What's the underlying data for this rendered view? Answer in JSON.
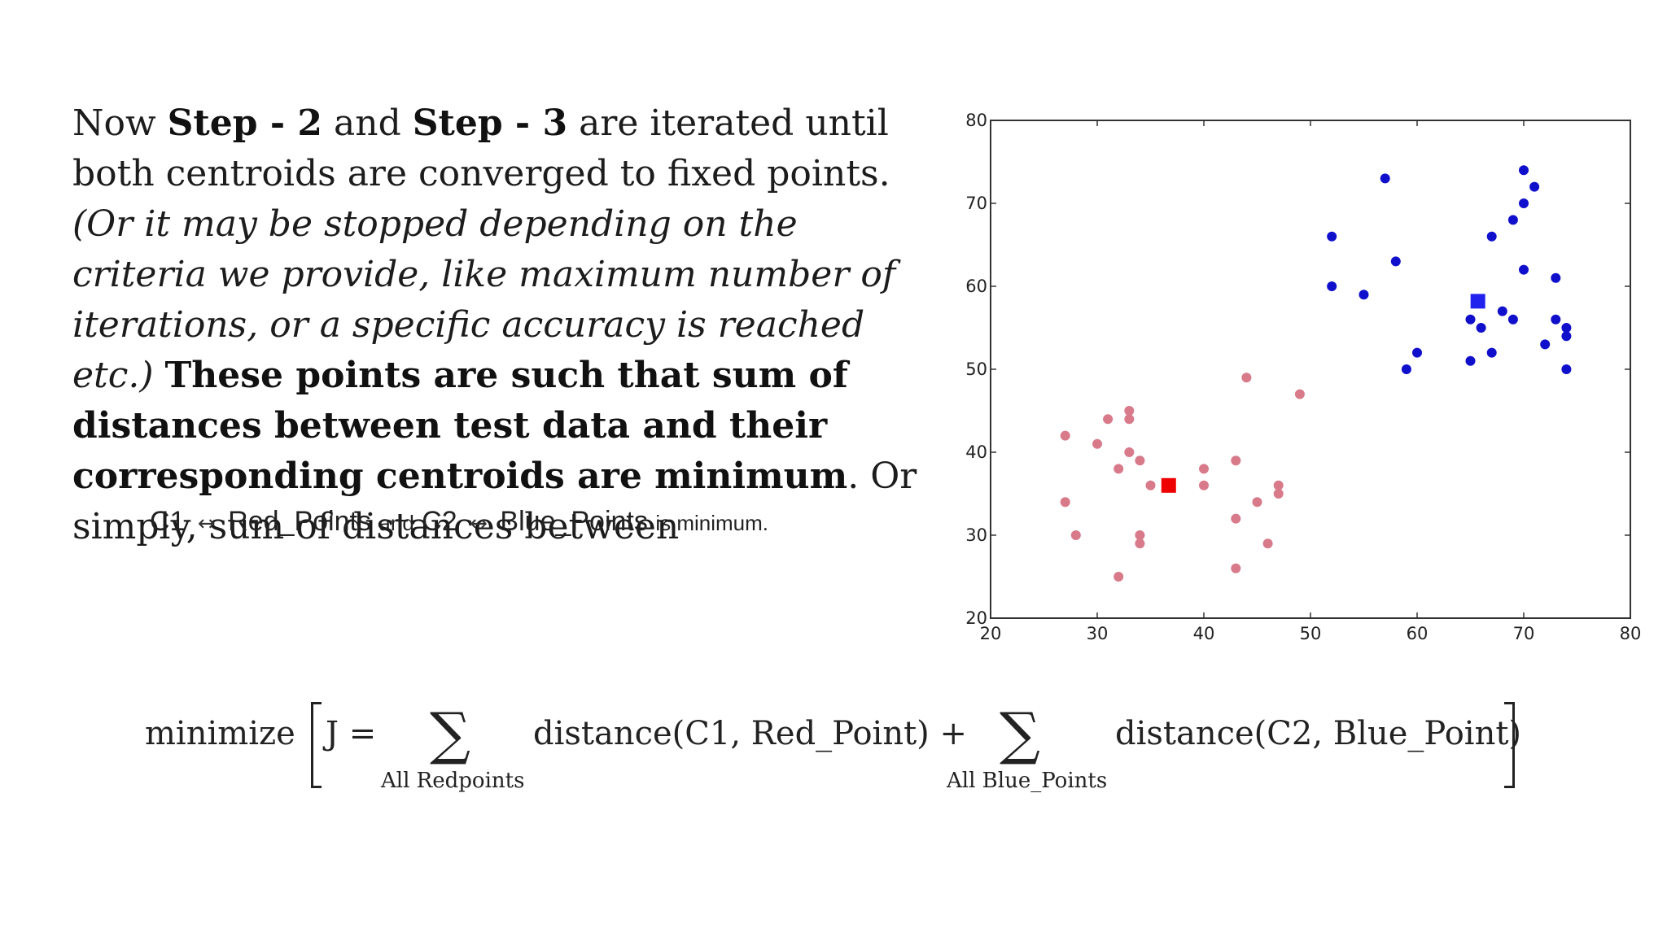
{
  "paragraph": {
    "s1": "Now ",
    "s2": "Step - 2",
    "s3": " and ",
    "s4": "Step - 3",
    "s5": " are iterated until both centroids are converged to fixed points. ",
    "s6": "(Or it may be stopped depending on the criteria we provide, like maximum number of iterations, or a specific accuracy is reached etc.)",
    "s7": " ",
    "s8": "These points are such that sum of distances between test data and their corresponding centroids are minimum",
    "s9": ". Or simply, sum of distances between"
  },
  "minimum_line": {
    "c1": "C1",
    "red": "Red_Points",
    "and": "and",
    "c2": "C2",
    "blue": "Blue_Points",
    "tail": "is minimum.",
    "arrow": "↔"
  },
  "formula": {
    "minimize": "minimize",
    "j": "J =",
    "sigma": "∑",
    "sub1": "All Redpoints",
    "term1": "distance(C1, Red_Point) +",
    "sub2": "All Blue_Points",
    "term2": "distance(C2, Blue_Point)"
  },
  "chart_data": {
    "type": "scatter",
    "xlim": [
      20,
      80
    ],
    "ylim": [
      20,
      80
    ],
    "xticks": [
      20,
      30,
      40,
      50,
      60,
      70,
      80
    ],
    "yticks": [
      20,
      30,
      40,
      50,
      60,
      70,
      80
    ],
    "grid": false,
    "series": [
      {
        "color": "#d87a8a",
        "marker": "circle",
        "points": [
          [
            27,
            42
          ],
          [
            27,
            34
          ],
          [
            28,
            30
          ],
          [
            30,
            41
          ],
          [
            31,
            44
          ],
          [
            32,
            38
          ],
          [
            32,
            25
          ],
          [
            33,
            45
          ],
          [
            33,
            44
          ],
          [
            33,
            40
          ],
          [
            34,
            39
          ],
          [
            34,
            30
          ],
          [
            34,
            29
          ],
          [
            35,
            36
          ],
          [
            40,
            38
          ],
          [
            40,
            36
          ],
          [
            43,
            39
          ],
          [
            43,
            32
          ],
          [
            43,
            26
          ],
          [
            44,
            49
          ],
          [
            45,
            34
          ],
          [
            46,
            29
          ],
          [
            47,
            36
          ],
          [
            47,
            35
          ],
          [
            49,
            47
          ]
        ]
      },
      {
        "color": "#1010cc",
        "marker": "circle",
        "points": [
          [
            52,
            66
          ],
          [
            52,
            60
          ],
          [
            55,
            59
          ],
          [
            57,
            73
          ],
          [
            58,
            63
          ],
          [
            59,
            50
          ],
          [
            60,
            52
          ],
          [
            65,
            56
          ],
          [
            65,
            51
          ],
          [
            66,
            55
          ],
          [
            67,
            66
          ],
          [
            67,
            52
          ],
          [
            68,
            57
          ],
          [
            69,
            68
          ],
          [
            69,
            56
          ],
          [
            70,
            74
          ],
          [
            70,
            70
          ],
          [
            70,
            62
          ],
          [
            71,
            72
          ],
          [
            72,
            53
          ],
          [
            73,
            61
          ],
          [
            73,
            56
          ],
          [
            74,
            55
          ],
          [
            74,
            54
          ],
          [
            74,
            50
          ]
        ]
      },
      {
        "color": "#ee0000",
        "marker": "square",
        "points": [
          [
            36.7,
            36
          ]
        ]
      },
      {
        "color": "#2222ee",
        "marker": "square",
        "points": [
          [
            65.7,
            58.2
          ]
        ]
      }
    ]
  }
}
